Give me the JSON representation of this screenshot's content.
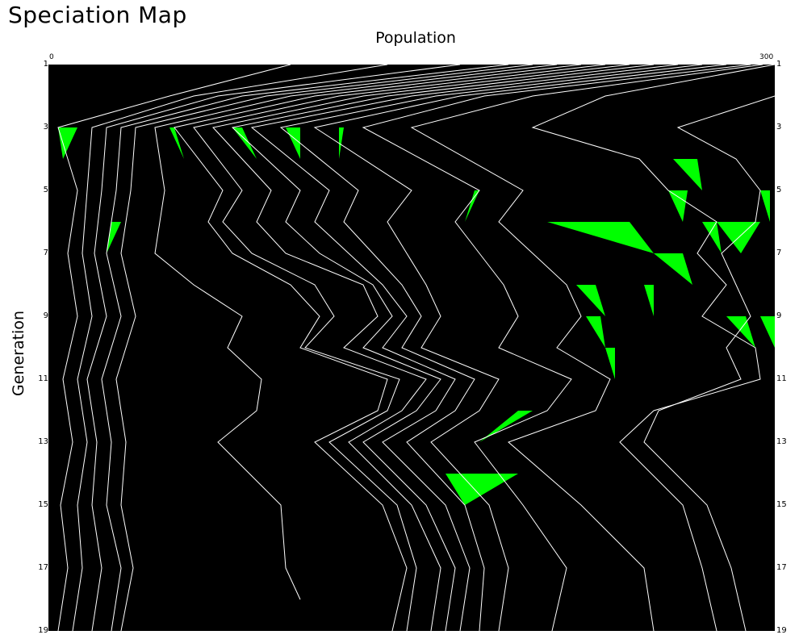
{
  "chart_data": {
    "type": "line",
    "title": "Speciation Map",
    "xlabel": "Population",
    "ylabel": "Generation",
    "xlim": [
      0,
      300
    ],
    "ylim": [
      1,
      19
    ],
    "x_tick_labels": [
      "0",
      "300"
    ],
    "y_ticks": [
      1,
      3,
      5,
      7,
      9,
      11,
      13,
      15,
      17,
      19
    ],
    "y_tick_labels": [
      "1",
      "3",
      "5",
      "7",
      "9",
      "11",
      "13",
      "15",
      "17",
      "19"
    ],
    "background_color": "#000000",
    "line_color": "#ffffff",
    "speciation_color": "#00ff00",
    "lineages": [
      [
        [
          100,
          1
        ],
        [
          50,
          2
        ],
        [
          4,
          3
        ],
        [
          12,
          5
        ],
        [
          8,
          7
        ],
        [
          12,
          9
        ],
        [
          6,
          11
        ],
        [
          10,
          13
        ],
        [
          5,
          15
        ],
        [
          8,
          17
        ],
        [
          4,
          19
        ]
      ],
      [
        [
          140,
          1
        ],
        [
          60,
          2
        ],
        [
          18,
          3
        ],
        [
          16,
          5
        ],
        [
          14,
          7
        ],
        [
          18,
          9
        ],
        [
          12,
          11
        ],
        [
          16,
          13
        ],
        [
          12,
          15
        ],
        [
          14,
          17
        ],
        [
          10,
          19
        ]
      ],
      [
        [
          170,
          1
        ],
        [
          70,
          2
        ],
        [
          24,
          3
        ],
        [
          22,
          5
        ],
        [
          19,
          7
        ],
        [
          24,
          9
        ],
        [
          16,
          11
        ],
        [
          20,
          13
        ],
        [
          18,
          15
        ],
        [
          22,
          17
        ],
        [
          18,
          19
        ]
      ],
      [
        [
          190,
          1
        ],
        [
          80,
          2
        ],
        [
          30,
          3
        ],
        [
          28,
          5
        ],
        [
          24,
          7
        ],
        [
          30,
          9
        ],
        [
          22,
          11
        ],
        [
          26,
          13
        ],
        [
          24,
          15
        ],
        [
          30,
          17
        ],
        [
          26,
          19
        ]
      ],
      [
        [
          200,
          1
        ],
        [
          90,
          2
        ],
        [
          36,
          3
        ],
        [
          34,
          5
        ],
        [
          30,
          7
        ],
        [
          36,
          9
        ],
        [
          28,
          11
        ],
        [
          32,
          13
        ],
        [
          30,
          15
        ],
        [
          35,
          17
        ],
        [
          30,
          19
        ]
      ],
      [
        [
          210,
          1
        ],
        [
          100,
          2
        ],
        [
          44,
          3
        ],
        [
          48,
          5
        ],
        [
          44,
          7
        ],
        [
          60,
          8
        ],
        [
          80,
          9
        ],
        [
          74,
          10
        ],
        [
          88,
          11
        ],
        [
          86,
          12
        ],
        [
          70,
          13
        ],
        [
          96,
          15
        ],
        [
          98,
          17
        ],
        [
          104,
          18
        ]
      ],
      [
        [
          220,
          1
        ],
        [
          110,
          2
        ],
        [
          52,
          3
        ],
        [
          72,
          5
        ],
        [
          66,
          6
        ],
        [
          76,
          7
        ],
        [
          100,
          8
        ],
        [
          112,
          9
        ],
        [
          104,
          10
        ],
        [
          140,
          11
        ],
        [
          136,
          12
        ],
        [
          110,
          13
        ],
        [
          138,
          15
        ],
        [
          148,
          17
        ],
        [
          142,
          19
        ]
      ],
      [
        [
          230,
          1
        ],
        [
          120,
          2
        ],
        [
          60,
          3
        ],
        [
          80,
          5
        ],
        [
          72,
          6
        ],
        [
          84,
          7
        ],
        [
          110,
          8
        ],
        [
          118,
          9
        ],
        [
          106,
          10
        ],
        [
          145,
          11
        ],
        [
          140,
          12
        ],
        [
          116,
          13
        ],
        [
          144,
          15
        ],
        [
          152,
          17
        ],
        [
          148,
          19
        ]
      ],
      [
        [
          240,
          1
        ],
        [
          130,
          2
        ],
        [
          68,
          3
        ],
        [
          92,
          5
        ],
        [
          86,
          6
        ],
        [
          98,
          7
        ],
        [
          130,
          8
        ],
        [
          136,
          9
        ],
        [
          122,
          10
        ],
        [
          156,
          11
        ],
        [
          146,
          12
        ],
        [
          124,
          13
        ],
        [
          150,
          15
        ],
        [
          162,
          17
        ],
        [
          158,
          19
        ]
      ],
      [
        [
          250,
          1
        ],
        [
          140,
          2
        ],
        [
          76,
          3
        ],
        [
          104,
          5
        ],
        [
          98,
          6
        ],
        [
          112,
          7
        ],
        [
          134,
          8
        ],
        [
          142,
          9
        ],
        [
          130,
          10
        ],
        [
          162,
          11
        ],
        [
          152,
          12
        ],
        [
          130,
          13
        ],
        [
          156,
          15
        ],
        [
          168,
          17
        ],
        [
          164,
          19
        ]
      ],
      [
        [
          260,
          1
        ],
        [
          150,
          2
        ],
        [
          84,
          3
        ],
        [
          116,
          5
        ],
        [
          110,
          6
        ],
        [
          124,
          7
        ],
        [
          138,
          8
        ],
        [
          148,
          9
        ],
        [
          138,
          10
        ],
        [
          168,
          11
        ],
        [
          160,
          12
        ],
        [
          138,
          13
        ],
        [
          164,
          15
        ],
        [
          174,
          17
        ],
        [
          170,
          19
        ]
      ],
      [
        [
          270,
          1
        ],
        [
          160,
          2
        ],
        [
          96,
          3
        ],
        [
          128,
          5
        ],
        [
          122,
          6
        ],
        [
          134,
          7
        ],
        [
          146,
          8
        ],
        [
          154,
          9
        ],
        [
          146,
          10
        ],
        [
          176,
          11
        ],
        [
          168,
          12
        ],
        [
          148,
          13
        ],
        [
          172,
          15
        ],
        [
          180,
          17
        ],
        [
          178,
          19
        ]
      ],
      [
        [
          280,
          1
        ],
        [
          170,
          2
        ],
        [
          110,
          3
        ],
        [
          150,
          5
        ],
        [
          140,
          6
        ],
        [
          148,
          7
        ],
        [
          156,
          8
        ],
        [
          162,
          9
        ],
        [
          154,
          10
        ],
        [
          186,
          11
        ],
        [
          178,
          12
        ],
        [
          158,
          13
        ],
        [
          182,
          15
        ],
        [
          190,
          17
        ],
        [
          186,
          19
        ]
      ],
      [
        [
          290,
          1
        ],
        [
          180,
          2
        ],
        [
          130,
          3
        ],
        [
          178,
          5
        ],
        [
          168,
          6
        ],
        [
          178,
          7
        ],
        [
          188,
          8
        ],
        [
          194,
          9
        ],
        [
          186,
          10
        ],
        [
          216,
          11
        ],
        [
          206,
          12
        ],
        [
          176,
          13
        ],
        [
          196,
          15
        ],
        [
          214,
          17
        ],
        [
          208,
          19
        ]
      ],
      [
        [
          295,
          1
        ],
        [
          200,
          2
        ],
        [
          150,
          3
        ],
        [
          196,
          5
        ],
        [
          186,
          6
        ],
        [
          200,
          7
        ],
        [
          214,
          8
        ],
        [
          220,
          9
        ],
        [
          210,
          10
        ],
        [
          232,
          11
        ],
        [
          226,
          12
        ],
        [
          190,
          13
        ],
        [
          220,
          15
        ],
        [
          246,
          17
        ],
        [
          250,
          19
        ]
      ],
      [
        [
          300,
          1
        ],
        [
          230,
          2
        ],
        [
          200,
          3
        ],
        [
          244,
          4
        ],
        [
          256,
          5
        ],
        [
          276,
          6
        ],
        [
          268,
          7
        ],
        [
          280,
          8
        ],
        [
          270,
          9
        ],
        [
          292,
          10
        ],
        [
          294,
          11
        ],
        [
          250,
          12
        ],
        [
          236,
          13
        ],
        [
          262,
          15
        ],
        [
          270,
          17
        ],
        [
          276,
          19
        ]
      ],
      [
        [
          300,
          2
        ],
        [
          260,
          3
        ],
        [
          284,
          4
        ],
        [
          294,
          5
        ],
        [
          292,
          6
        ],
        [
          278,
          7
        ],
        [
          284,
          8
        ],
        [
          290,
          9
        ],
        [
          280,
          10
        ],
        [
          286,
          11
        ],
        [
          252,
          12
        ],
        [
          246,
          13
        ],
        [
          272,
          15
        ],
        [
          282,
          17
        ],
        [
          288,
          19
        ]
      ]
    ],
    "speciation_events": [
      [
        [
          4,
          3
        ],
        [
          12,
          3
        ],
        [
          6,
          4
        ]
      ],
      [
        [
          30,
          6
        ],
        [
          26,
          6
        ],
        [
          24,
          7
        ]
      ],
      [
        [
          50,
          3
        ],
        [
          56,
          4
        ],
        [
          52,
          3
        ]
      ],
      [
        [
          76,
          3
        ],
        [
          86,
          4
        ],
        [
          80,
          3
        ]
      ],
      [
        [
          98,
          3
        ],
        [
          104,
          3
        ],
        [
          104,
          4
        ]
      ],
      [
        [
          120,
          3
        ],
        [
          122,
          3
        ],
        [
          120,
          4
        ]
      ],
      [
        [
          176,
          5
        ],
        [
          178,
          5
        ],
        [
          172,
          6
        ]
      ],
      [
        [
          206,
          6
        ],
        [
          240,
          6
        ],
        [
          250,
          7
        ]
      ],
      [
        [
          250,
          7
        ],
        [
          262,
          7
        ],
        [
          266,
          8
        ]
      ],
      [
        [
          256,
          5
        ],
        [
          264,
          5
        ],
        [
          262,
          6
        ]
      ],
      [
        [
          258,
          4
        ],
        [
          268,
          4
        ],
        [
          270,
          5
        ]
      ],
      [
        [
          270,
          6
        ],
        [
          276,
          6
        ],
        [
          278,
          7
        ]
      ],
      [
        [
          276,
          6
        ],
        [
          294,
          6
        ],
        [
          286,
          7
        ]
      ],
      [
        [
          294,
          5
        ],
        [
          298,
          5
        ],
        [
          298,
          6
        ]
      ],
      [
        [
          218,
          8
        ],
        [
          226,
          8
        ],
        [
          230,
          9
        ]
      ],
      [
        [
          246,
          8
        ],
        [
          250,
          8
        ],
        [
          250,
          9
        ]
      ],
      [
        [
          222,
          9
        ],
        [
          228,
          9
        ],
        [
          230,
          10
        ]
      ],
      [
        [
          230,
          10
        ],
        [
          234,
          10
        ],
        [
          234,
          11
        ]
      ],
      [
        [
          280,
          9
        ],
        [
          288,
          9
        ],
        [
          292,
          10
        ]
      ],
      [
        [
          294,
          9
        ],
        [
          300,
          9
        ],
        [
          300,
          10
        ]
      ],
      [
        [
          200,
          12
        ],
        [
          194,
          12
        ],
        [
          178,
          13
        ]
      ],
      [
        [
          164,
          14
        ],
        [
          194,
          14
        ],
        [
          172,
          15
        ]
      ]
    ]
  }
}
